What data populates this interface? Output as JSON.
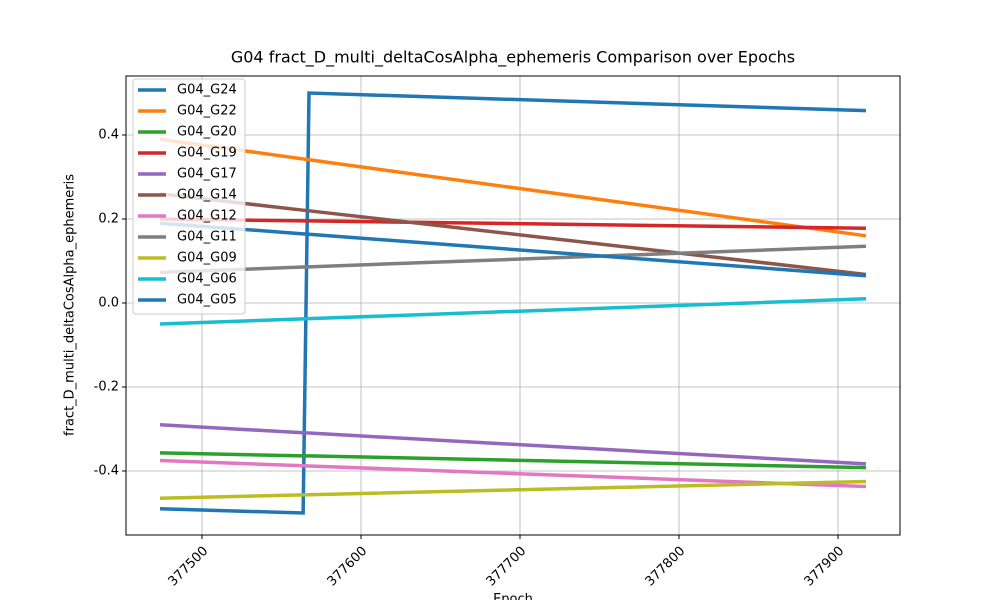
{
  "chart_data": {
    "type": "line",
    "title": "G04 fract_D_multi_deltaCosAlpha_ephemeris Comparison over Epochs",
    "xlabel": "Epoch",
    "ylabel": "fract_D_multi_deltaCosAlpha_ephemeris",
    "x": [
      377473.6,
      377563.6,
      377567.3,
      377917.6
    ],
    "xlim": [
      377452.2,
      377939
    ],
    "xticks": [
      377500,
      377600,
      377700,
      377800,
      377900
    ],
    "ylim": [
      -0.5524,
      0.5405
    ],
    "yticks": [
      -0.4,
      -0.2,
      {
        "value": 0,
        "label": "0.0"
      },
      0.2,
      0.4
    ],
    "grid": true,
    "legend": "upper-left",
    "series": [
      {
        "name": "G04_G24",
        "color": "#1f77b4",
        "values": [
          -0.49,
          -0.5,
          0.5,
          0.458
        ]
      },
      {
        "name": "G04_G22",
        "color": "#ff7f0e",
        "values": [
          0.39,
          0.343,
          0.341,
          0.16
        ]
      },
      {
        "name": "G04_G20",
        "color": "#2ca02c",
        "values": [
          -0.357,
          -0.364,
          -0.364,
          -0.392
        ]
      },
      {
        "name": "G04_G19",
        "color": "#d62728",
        "values": [
          0.2,
          0.1955,
          0.1954,
          0.178
        ]
      },
      {
        "name": "G04_G17",
        "color": "#9467bd",
        "values": [
          -0.29,
          -0.309,
          -0.3096,
          -0.383
        ]
      },
      {
        "name": "G04_G14",
        "color": "#8c564b",
        "values": [
          0.26,
          0.221,
          0.2195,
          0.068
        ]
      },
      {
        "name": "G04_G12",
        "color": "#e377c2",
        "values": [
          -0.375,
          -0.3876,
          -0.3881,
          -0.437
        ]
      },
      {
        "name": "G04_G11",
        "color": "#7f7f7f",
        "values": [
          0.073,
          0.0856,
          0.0861,
          0.135
        ]
      },
      {
        "name": "G04_G09",
        "color": "#bcbd22",
        "values": [
          -0.465,
          -0.4569,
          -0.4566,
          -0.425
        ]
      },
      {
        "name": "G04_G06",
        "color": "#17becf",
        "values": [
          -0.05,
          -0.0378,
          -0.0373,
          0.01
        ]
      },
      {
        "name": "G04_G05",
        "color": "#1f77b4",
        "values": [
          0.19,
          0.1647,
          0.1636,
          0.065
        ]
      }
    ]
  }
}
